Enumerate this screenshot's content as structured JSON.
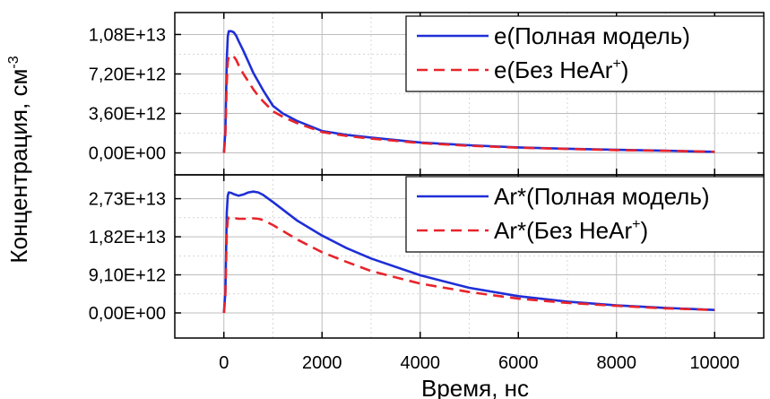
{
  "chart_data": [
    {
      "type": "line",
      "panel": "top",
      "xlim": [
        -1000,
        11000
      ],
      "ylim": [
        -2000000000000,
        12800000000000
      ],
      "yticks": [
        0,
        3600000000000,
        7200000000000,
        10800000000000
      ],
      "ytick_labels": [
        "0,00E+00",
        "3,60E+12",
        "7,20E+12",
        "1,08E+13"
      ],
      "grid": true,
      "legend_position": "top-right",
      "series": [
        {
          "name_main": "e(Полная модель)",
          "name_sup": "",
          "name_tail": "",
          "color": "#1f2fd6",
          "dash": "solid",
          "x": [
            0,
            30,
            60,
            80,
            100,
            150,
            200,
            250,
            300,
            400,
            500,
            600,
            700,
            800,
            1000,
            1200,
            1500,
            2000,
            2500,
            3000,
            4000,
            5000,
            6000,
            7000,
            8000,
            9000,
            10000
          ],
          "y": [
            0,
            2000000000000,
            8500000000000,
            10600000000000,
            11100000000000,
            11100000000000,
            11000000000000,
            10700000000000,
            10200000000000,
            9300000000000,
            8300000000000,
            7300000000000,
            6500000000000,
            5700000000000,
            4300000000000,
            3600000000000,
            2900000000000,
            2000000000000,
            1650000000000,
            1400000000000,
            950000000000,
            700000000000,
            500000000000,
            380000000000,
            280000000000,
            200000000000,
            100000000000
          ]
        },
        {
          "name_main": "e(Без HeAr",
          "name_sup": "+",
          "name_tail": ")",
          "color": "#e8242b",
          "dash": "dashed",
          "x": [
            0,
            30,
            60,
            80,
            100,
            150,
            200,
            250,
            300,
            400,
            500,
            600,
            700,
            800,
            1000,
            1200,
            1500,
            2000,
            2500,
            3000,
            4000,
            5000,
            6000,
            7000,
            8000,
            9000,
            10000
          ],
          "y": [
            0,
            1500000000000,
            6500000000000,
            8300000000000,
            8800000000000,
            8900000000000,
            8800000000000,
            8500000000000,
            8000000000000,
            7200000000000,
            6500000000000,
            5800000000000,
            5200000000000,
            4700000000000,
            3800000000000,
            3300000000000,
            2700000000000,
            1900000000000,
            1550000000000,
            1300000000000,
            900000000000,
            650000000000,
            480000000000,
            360000000000,
            260000000000,
            190000000000,
            100000000000
          ]
        }
      ]
    },
    {
      "type": "line",
      "panel": "bottom",
      "xlim": [
        -1000,
        11000
      ],
      "ylim": [
        -6000000000000,
        33000000000000
      ],
      "xticks": [
        0,
        2000,
        4000,
        6000,
        8000,
        10000
      ],
      "xtick_labels": [
        "0",
        "2000",
        "4000",
        "6000",
        "8000",
        "10000"
      ],
      "yticks": [
        0,
        9100000000000,
        18200000000000,
        27300000000000
      ],
      "ytick_labels": [
        "0,00E+00",
        "9,10E+12",
        "1,82E+13",
        "2,73E+13"
      ],
      "grid": true,
      "legend_position": "top-right",
      "series": [
        {
          "name_main": "Ar*(Полная модель)",
          "name_sup": "",
          "name_tail": "",
          "color": "#1f2fd6",
          "dash": "solid",
          "x": [
            0,
            30,
            60,
            80,
            100,
            150,
            200,
            300,
            400,
            500,
            600,
            700,
            800,
            1000,
            1500,
            2000,
            2500,
            3000,
            4000,
            5000,
            6000,
            7000,
            8000,
            9000,
            10000
          ],
          "y": [
            0,
            5000000000000,
            24000000000000,
            28000000000000,
            28800000000000,
            28700000000000,
            28400000000000,
            28000000000000,
            28300000000000,
            28800000000000,
            29000000000000,
            28800000000000,
            28200000000000,
            26500000000000,
            22000000000000,
            18500000000000,
            15500000000000,
            13000000000000,
            9000000000000,
            6000000000000,
            4000000000000,
            2700000000000,
            1800000000000,
            1200000000000,
            700000000000
          ]
        },
        {
          "name_main": "Ar*(Без HeAr",
          "name_sup": "+",
          "name_tail": ")",
          "color": "#e8242b",
          "dash": "dashed",
          "x": [
            0,
            30,
            60,
            80,
            100,
            150,
            200,
            300,
            400,
            500,
            600,
            700,
            800,
            1000,
            1500,
            2000,
            2500,
            3000,
            4000,
            5000,
            6000,
            7000,
            8000,
            9000,
            10000
          ],
          "y": [
            0,
            4000000000000,
            19000000000000,
            22300000000000,
            22800000000000,
            22800000000000,
            22700000000000,
            22500000000000,
            22500000000000,
            22500000000000,
            22600000000000,
            22500000000000,
            22200000000000,
            21000000000000,
            17500000000000,
            14500000000000,
            12200000000000,
            10000000000000,
            7000000000000,
            5000000000000,
            3400000000000,
            2400000000000,
            1700000000000,
            1100000000000,
            700000000000
          ]
        }
      ]
    }
  ],
  "axes": {
    "ylabel_main": "Концентрация, см",
    "ylabel_sup": "-3",
    "xlabel": "Время, нс"
  },
  "colors": {
    "frame": "#000000",
    "grid": "#bdbdbd",
    "blue": "#1f2fd6",
    "red": "#e8242b"
  }
}
